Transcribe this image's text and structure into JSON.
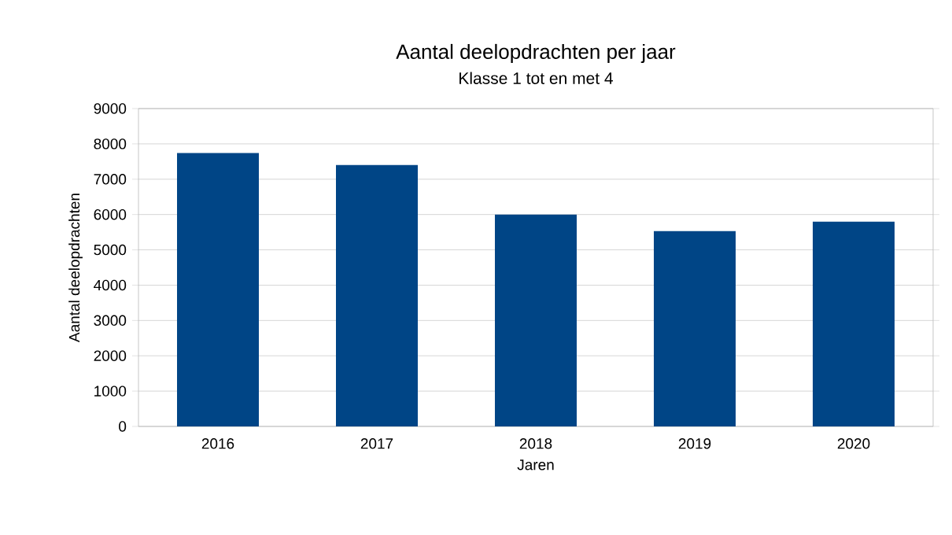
{
  "chart_data": {
    "type": "bar",
    "title": "Aantal deelopdrachten per jaar",
    "subtitle": "Klasse 1 tot en met 4",
    "xlabel": "Jaren",
    "ylabel": "Aantal deelopdrachten",
    "categories": [
      "2016",
      "2017",
      "2018",
      "2019",
      "2020"
    ],
    "values": [
      7740,
      7400,
      6000,
      5530,
      5800
    ],
    "color": "#004586",
    "ylim": [
      0,
      9000
    ],
    "yticks": [
      0,
      1000,
      2000,
      3000,
      4000,
      5000,
      6000,
      7000,
      8000,
      9000
    ],
    "grid": "y"
  }
}
